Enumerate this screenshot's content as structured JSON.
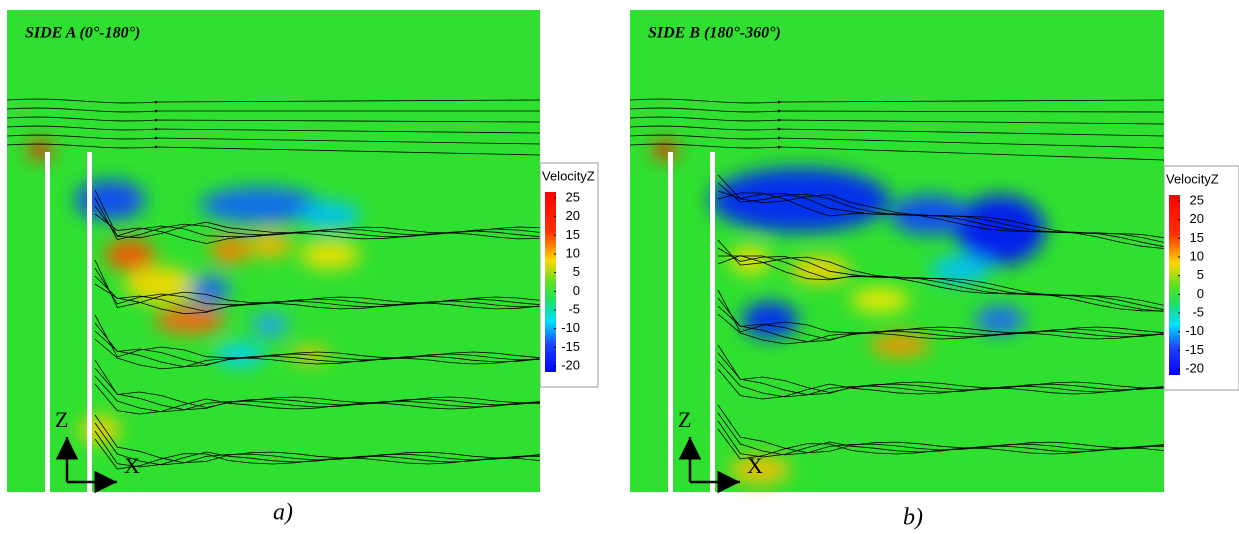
{
  "panels": [
    {
      "title": "SIDE A (0°-180°)",
      "colorbar": {
        "title": "VelocityZ",
        "ticks": [
          25,
          20,
          15,
          10,
          5,
          0,
          -5,
          -10,
          -15,
          -20
        ]
      },
      "axis_labels": {
        "z": "Z",
        "x": "X"
      },
      "caption": "a)"
    },
    {
      "title": "SIDE B (180°-360°)",
      "colorbar": {
        "title": "VelocityZ",
        "ticks": [
          25,
          20,
          15,
          10,
          5,
          0,
          -5,
          -10,
          -15,
          -20
        ]
      },
      "axis_labels": {
        "z": "Z",
        "x": "X"
      },
      "caption": "b)"
    }
  ]
}
